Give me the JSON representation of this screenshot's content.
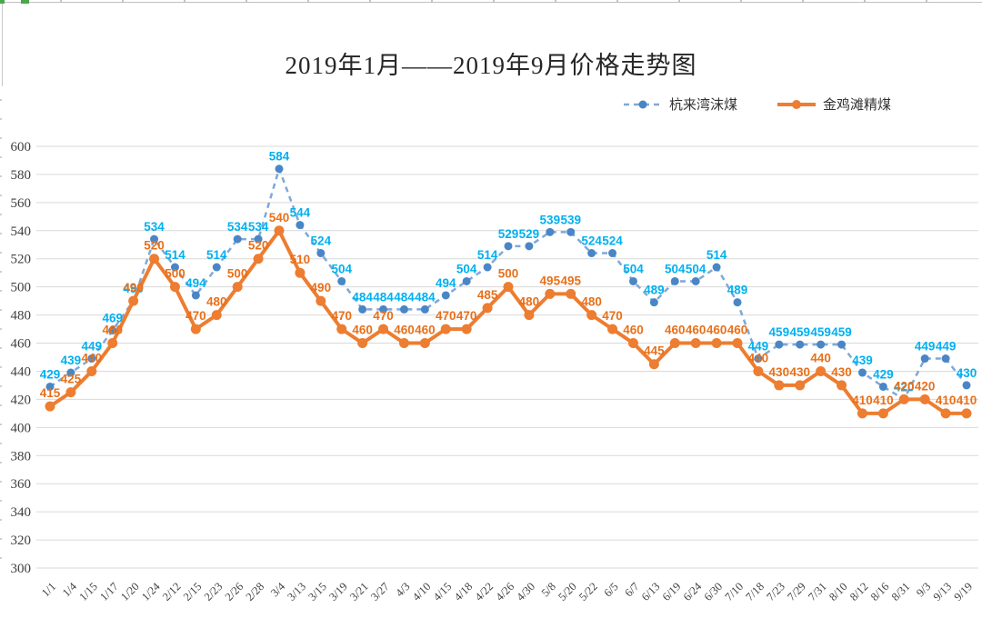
{
  "title": "2019年1月——2019年9月价格走势图",
  "legend": [
    {
      "label": "杭来湾沫煤",
      "color": "#5B9BD5",
      "style": "dashed"
    },
    {
      "label": "金鸡滩精煤",
      "color": "#ED7D31",
      "style": "solid"
    }
  ],
  "chart_data": {
    "type": "line",
    "title": "2019年1月——2019年9月价格走势图",
    "x": [
      "1/1",
      "1/4",
      "1/15",
      "1/17",
      "1/20",
      "1/24",
      "2/12",
      "2/15",
      "2/23",
      "2/26",
      "2/28",
      "3/4",
      "3/13",
      "3/15",
      "3/19",
      "3/21",
      "3/27",
      "4/3",
      "4/10",
      "4/15",
      "4/18",
      "4/22",
      "4/26",
      "4/30",
      "5/8",
      "5/20",
      "5/22",
      "6/5",
      "6/7",
      "6/13",
      "6/19",
      "6/24",
      "6/30",
      "7/10",
      "7/18",
      "7/23",
      "7/29",
      "7/31",
      "8/10",
      "8/12",
      "8/16",
      "8/31",
      "9/3",
      "9/13",
      "9/19"
    ],
    "series": [
      {
        "name": "杭来湾沫煤",
        "line": "dashed",
        "color": "#7FA8D9",
        "marker_color": "#4A86C6",
        "label_color": "#00B0F0",
        "values": [
          429,
          439,
          449,
          469,
          490,
          534,
          514,
          494,
          514,
          534,
          534,
          584,
          544,
          524,
          504,
          484,
          484,
          484,
          484,
          494,
          504,
          514,
          529,
          529,
          539,
          539,
          524,
          524,
          504,
          489,
          504,
          504,
          514,
          489,
          449,
          459,
          459,
          459,
          459,
          439,
          429,
          420,
          449,
          449,
          430
        ]
      },
      {
        "name": "金鸡滩精煤",
        "line": "solid",
        "color": "#ED7D31",
        "marker_color": "#ED7D31",
        "label_color": "#E8701A",
        "values": [
          415,
          425,
          440,
          460,
          490,
          520,
          500,
          470,
          480,
          500,
          520,
          540,
          510,
          490,
          470,
          460,
          470,
          460,
          460,
          470,
          470,
          485,
          500,
          480,
          495,
          495,
          480,
          470,
          460,
          445,
          460,
          460,
          460,
          460,
          440,
          430,
          430,
          440,
          430,
          410,
          410,
          420,
          420,
          410,
          410
        ]
      }
    ],
    "ylim": [
      300,
      600
    ],
    "ytick_step": 20,
    "grid": true,
    "grid_color": "#D9D9D9",
    "legend_position": "top-right",
    "data_labels": true,
    "x_label_rotation": -45
  }
}
